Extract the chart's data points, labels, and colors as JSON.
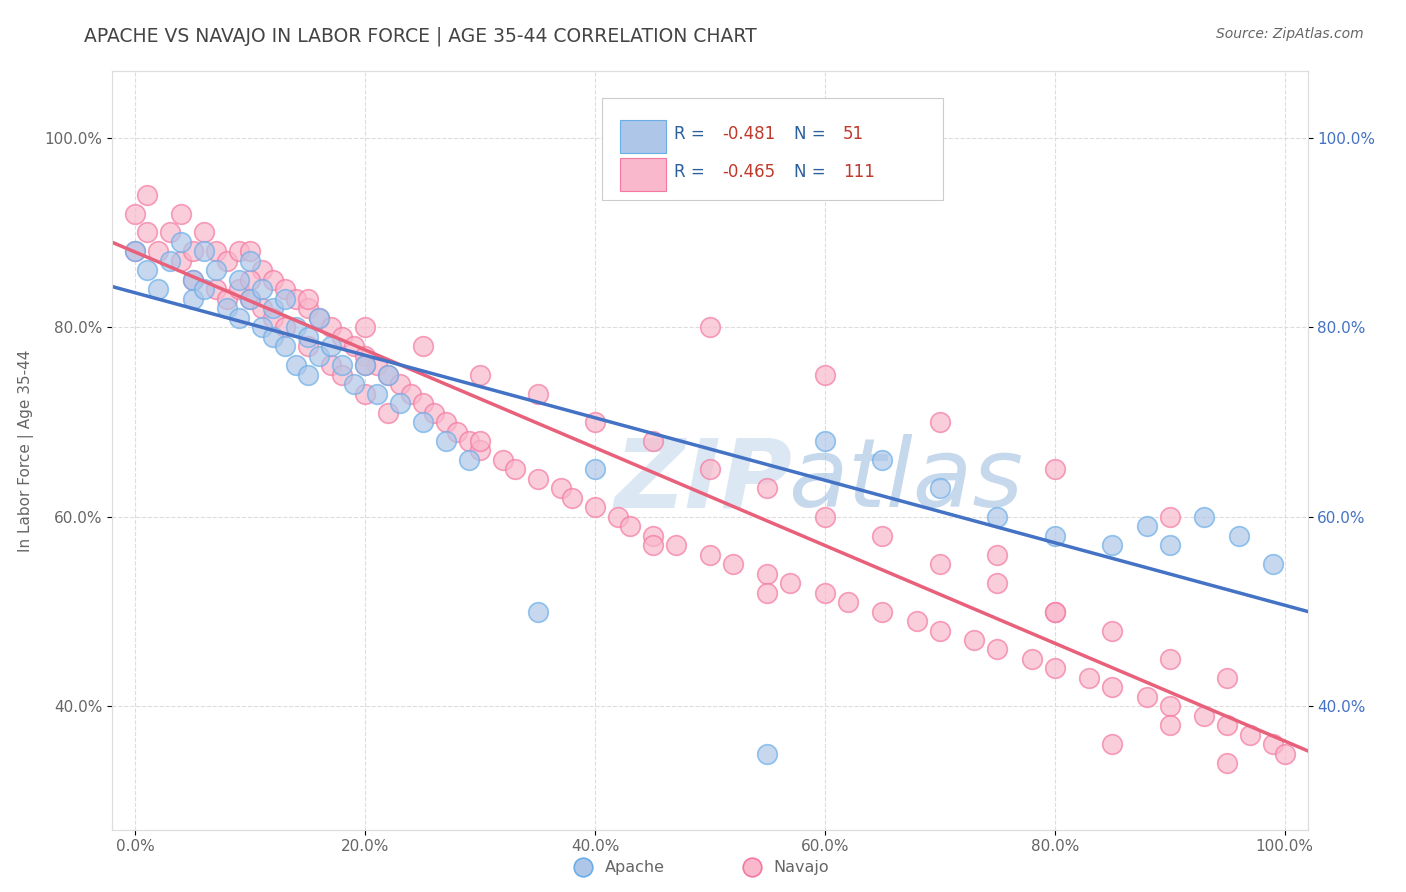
{
  "title": "APACHE VS NAVAJO IN LABOR FORCE | AGE 35-44 CORRELATION CHART",
  "source_text": "Source: ZipAtlas.com",
  "ylabel": "In Labor Force | Age 35-44",
  "xlim": [
    -0.02,
    1.02
  ],
  "ylim": [
    0.27,
    1.07
  ],
  "x_ticks": [
    0.0,
    0.2,
    0.4,
    0.6,
    0.8,
    1.0
  ],
  "x_tick_labels": [
    "0.0%",
    "20.0%",
    "40.0%",
    "60.0%",
    "80.0%",
    "100.0%"
  ],
  "y_ticks": [
    0.4,
    0.6,
    0.8,
    1.0
  ],
  "y_tick_labels": [
    "40.0%",
    "60.0%",
    "80.0%",
    "100.0%"
  ],
  "apache_color": "#aec6e8",
  "navajo_color": "#f9b8cc",
  "apache_edge_color": "#6aaee8",
  "navajo_edge_color": "#f478a0",
  "apache_line_color": "#4472c4",
  "navajo_line_color": "#e8607a",
  "apache_R": -0.481,
  "apache_N": 51,
  "navajo_R": -0.465,
  "navajo_N": 111,
  "watermark_zip": "ZIP",
  "watermark_atlas": "atlas",
  "watermark_color_zip": "#b8cfe8",
  "watermark_color_atlas": "#9dbce0",
  "title_color": "#444444",
  "label_color": "#666666",
  "right_tick_color": "#4472c4",
  "legend_text_color": "#2c5f9e",
  "legend_r_color": "#c0392b",
  "background_color": "#ffffff",
  "grid_color": "#dddddd",
  "apache_x": [
    0.0,
    0.01,
    0.02,
    0.03,
    0.04,
    0.05,
    0.05,
    0.06,
    0.06,
    0.07,
    0.08,
    0.09,
    0.09,
    0.1,
    0.1,
    0.11,
    0.11,
    0.12,
    0.12,
    0.13,
    0.13,
    0.14,
    0.14,
    0.15,
    0.15,
    0.16,
    0.16,
    0.17,
    0.18,
    0.19,
    0.2,
    0.21,
    0.22,
    0.23,
    0.25,
    0.27,
    0.29,
    0.35,
    0.4,
    0.55,
    0.6,
    0.65,
    0.7,
    0.75,
    0.8,
    0.85,
    0.88,
    0.9,
    0.93,
    0.96,
    0.99
  ],
  "apache_y": [
    0.88,
    0.86,
    0.84,
    0.87,
    0.89,
    0.85,
    0.83,
    0.88,
    0.84,
    0.86,
    0.82,
    0.85,
    0.81,
    0.87,
    0.83,
    0.84,
    0.8,
    0.82,
    0.79,
    0.83,
    0.78,
    0.8,
    0.76,
    0.79,
    0.75,
    0.81,
    0.77,
    0.78,
    0.76,
    0.74,
    0.76,
    0.73,
    0.75,
    0.72,
    0.7,
    0.68,
    0.66,
    0.5,
    0.65,
    0.35,
    0.68,
    0.66,
    0.63,
    0.6,
    0.58,
    0.57,
    0.59,
    0.57,
    0.6,
    0.58,
    0.55
  ],
  "navajo_x": [
    0.0,
    0.0,
    0.01,
    0.01,
    0.02,
    0.03,
    0.04,
    0.04,
    0.05,
    0.05,
    0.06,
    0.07,
    0.07,
    0.08,
    0.08,
    0.09,
    0.09,
    0.1,
    0.1,
    0.11,
    0.11,
    0.12,
    0.12,
    0.13,
    0.13,
    0.14,
    0.15,
    0.15,
    0.16,
    0.17,
    0.17,
    0.18,
    0.18,
    0.19,
    0.2,
    0.2,
    0.21,
    0.22,
    0.22,
    0.23,
    0.24,
    0.25,
    0.26,
    0.27,
    0.28,
    0.29,
    0.3,
    0.32,
    0.33,
    0.35,
    0.37,
    0.38,
    0.4,
    0.42,
    0.43,
    0.45,
    0.47,
    0.5,
    0.52,
    0.55,
    0.57,
    0.6,
    0.62,
    0.65,
    0.68,
    0.7,
    0.73,
    0.75,
    0.78,
    0.8,
    0.83,
    0.85,
    0.88,
    0.9,
    0.93,
    0.95,
    0.97,
    0.99,
    1.0,
    0.1,
    0.2,
    0.3,
    0.4,
    0.5,
    0.6,
    0.7,
    0.8,
    0.9,
    0.15,
    0.25,
    0.35,
    0.45,
    0.55,
    0.65,
    0.75,
    0.85,
    0.95,
    0.5,
    0.6,
    0.7,
    0.8,
    0.9,
    0.3,
    0.2,
    0.85,
    0.95,
    0.9,
    0.75,
    0.8,
    0.45,
    0.55
  ],
  "navajo_y": [
    0.92,
    0.88,
    0.94,
    0.9,
    0.88,
    0.9,
    0.92,
    0.87,
    0.88,
    0.85,
    0.9,
    0.88,
    0.84,
    0.87,
    0.83,
    0.88,
    0.84,
    0.88,
    0.83,
    0.86,
    0.82,
    0.85,
    0.81,
    0.84,
    0.8,
    0.83,
    0.82,
    0.78,
    0.81,
    0.8,
    0.76,
    0.79,
    0.75,
    0.78,
    0.77,
    0.73,
    0.76,
    0.75,
    0.71,
    0.74,
    0.73,
    0.72,
    0.71,
    0.7,
    0.69,
    0.68,
    0.67,
    0.66,
    0.65,
    0.64,
    0.63,
    0.62,
    0.61,
    0.6,
    0.59,
    0.58,
    0.57,
    0.56,
    0.55,
    0.54,
    0.53,
    0.52,
    0.51,
    0.5,
    0.49,
    0.48,
    0.47,
    0.46,
    0.45,
    0.44,
    0.43,
    0.42,
    0.41,
    0.4,
    0.39,
    0.38,
    0.37,
    0.36,
    0.35,
    0.85,
    0.8,
    0.75,
    0.7,
    0.65,
    0.6,
    0.55,
    0.5,
    0.45,
    0.83,
    0.78,
    0.73,
    0.68,
    0.63,
    0.58,
    0.53,
    0.48,
    0.43,
    0.8,
    0.75,
    0.7,
    0.65,
    0.6,
    0.68,
    0.76,
    0.36,
    0.34,
    0.38,
    0.56,
    0.5,
    0.57,
    0.52
  ]
}
